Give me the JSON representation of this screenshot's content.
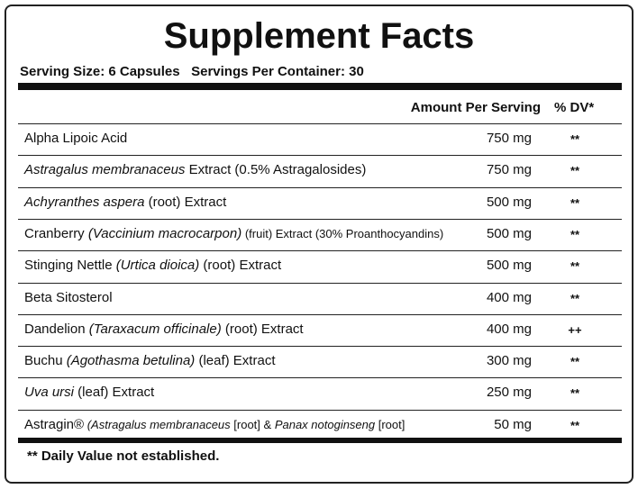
{
  "title": "Supplement Facts",
  "serving_size": "Serving Size: 6 Capsules",
  "servings_per_container": "Servings Per Container: 30",
  "header": {
    "amount": "Amount Per Serving",
    "dv": "% DV*"
  },
  "rows": [
    {
      "name": [
        {
          "text": "Alpha Lipoic Acid"
        }
      ],
      "amount": "750 mg",
      "dv": "**"
    },
    {
      "name": [
        {
          "text": "Astragalus membranaceus",
          "italic": true
        },
        {
          "text": " Extract (0.5% Astragalosides)"
        }
      ],
      "amount": "750 mg",
      "dv": "**"
    },
    {
      "name": [
        {
          "text": "Achyranthes aspera",
          "italic": true
        },
        {
          "text": " (root) Extract"
        }
      ],
      "amount": "500 mg",
      "dv": "**"
    },
    {
      "name": [
        {
          "text": "Cranberry "
        },
        {
          "text": "(Vaccinium macrocarpon)",
          "italic": true
        },
        {
          "text": " (fruit) Extract (30% Proanthocyandins)",
          "small": true
        }
      ],
      "amount": "500 mg",
      "dv": "**"
    },
    {
      "name": [
        {
          "text": "Stinging Nettle "
        },
        {
          "text": "(Urtica dioica)",
          "italic": true
        },
        {
          "text": " (root) Extract"
        }
      ],
      "amount": "500 mg",
      "dv": "**"
    },
    {
      "name": [
        {
          "text": "Beta Sitosterol"
        }
      ],
      "amount": "400 mg",
      "dv": "**"
    },
    {
      "name": [
        {
          "text": "Dandelion "
        },
        {
          "text": "(Taraxacum officinale)",
          "italic": true
        },
        {
          "text": " (root) Extract"
        }
      ],
      "amount": "400 mg",
      "dv": "++"
    },
    {
      "name": [
        {
          "text": "Buchu "
        },
        {
          "text": "(Agothasma betulina)",
          "italic": true
        },
        {
          "text": " (leaf) Extract"
        }
      ],
      "amount": "300 mg",
      "dv": "**"
    },
    {
      "name": [
        {
          "text": "Uva ursi",
          "italic": true
        },
        {
          "text": " (leaf) Extract"
        }
      ],
      "amount": "250 mg",
      "dv": "**"
    },
    {
      "name": [
        {
          "text": "Astragin®"
        },
        {
          "text": " (Astragalus membranaceus",
          "italic": true,
          "small": true
        },
        {
          "text": " [root] & ",
          "small": true
        },
        {
          "text": "Panax notoginseng",
          "italic": true,
          "small": true
        },
        {
          "text": " [root]",
          "small": true
        }
      ],
      "amount": "50 mg",
      "dv": "**"
    }
  ],
  "footnote": "** Daily Value not established."
}
